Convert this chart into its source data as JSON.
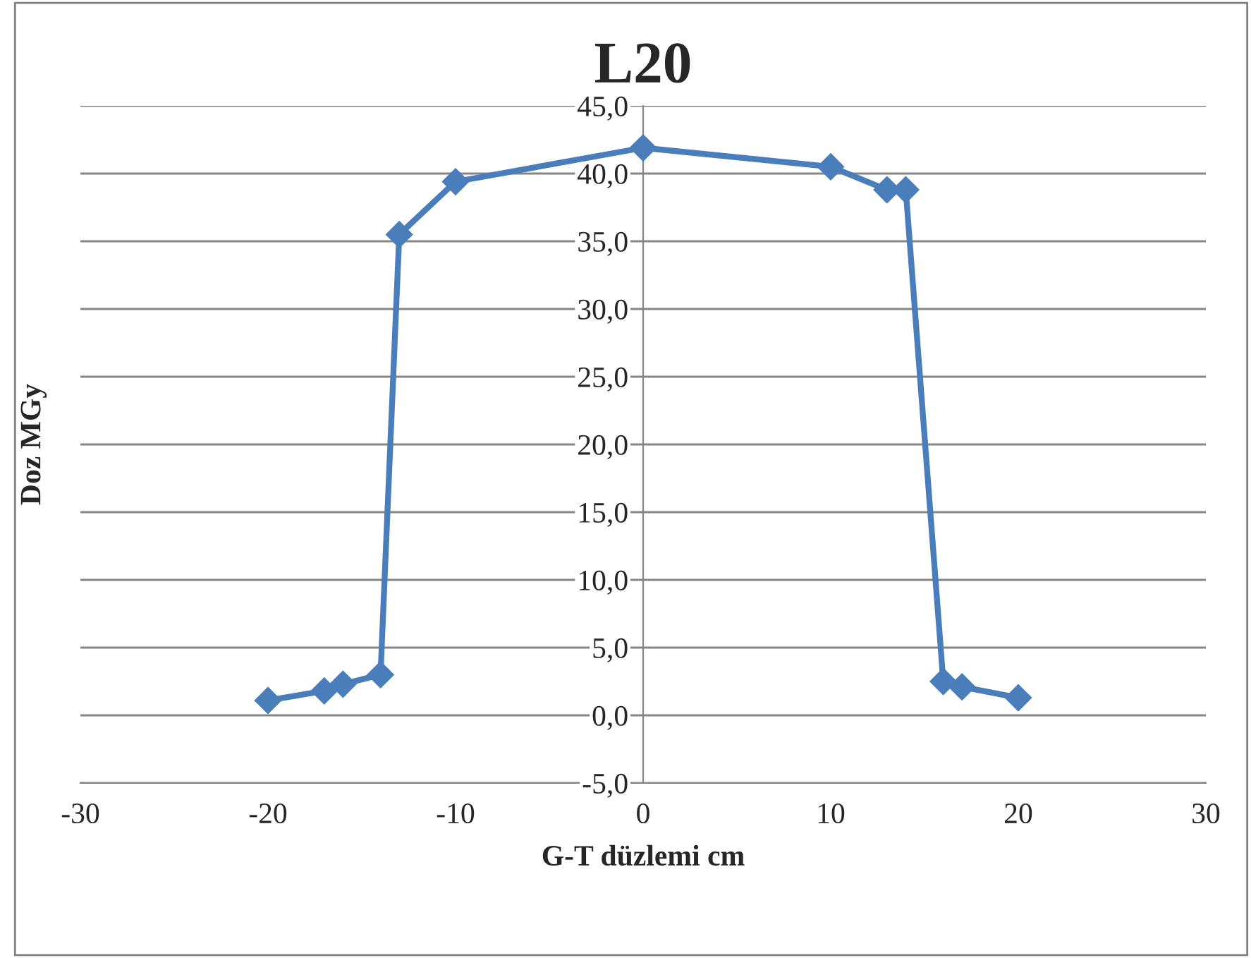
{
  "chart_data": {
    "type": "line",
    "title": "L20",
    "xlabel": "G-T düzlemi cm",
    "ylabel": "Doz MGy",
    "series": [
      {
        "color": "#4a7ebb",
        "x": [
          -20,
          -17,
          -16,
          -14,
          -13,
          -10,
          0,
          10,
          13,
          14,
          16,
          17,
          20
        ],
        "values": [
          1.1,
          1.8,
          2.3,
          3.0,
          35.5,
          39.4,
          41.9,
          40.5,
          38.8,
          38.8,
          2.5,
          2.1,
          1.3
        ]
      }
    ],
    "xlim": [
      -30,
      30
    ],
    "xticks": [
      -30,
      -20,
      -10,
      0,
      10,
      20,
      30
    ],
    "ylim": [
      -5,
      45
    ],
    "yticks": [
      {
        "value": -5,
        "label": "-5,0"
      },
      {
        "value": 0,
        "label": "0,0"
      },
      {
        "value": 5,
        "label": "5,0"
      },
      {
        "value": 10,
        "label": "10,0"
      },
      {
        "value": 15,
        "label": "15,0"
      },
      {
        "value": 20,
        "label": "20,0"
      },
      {
        "value": 25,
        "label": "25,0"
      },
      {
        "value": 30,
        "label": "30,0"
      },
      {
        "value": 35,
        "label": "35,0"
      },
      {
        "value": 40,
        "label": "40,0"
      },
      {
        "value": 45,
        "label": "45,0"
      }
    ],
    "grid": "y",
    "marker": "diamond",
    "line_style": "solid",
    "legend": false
  }
}
